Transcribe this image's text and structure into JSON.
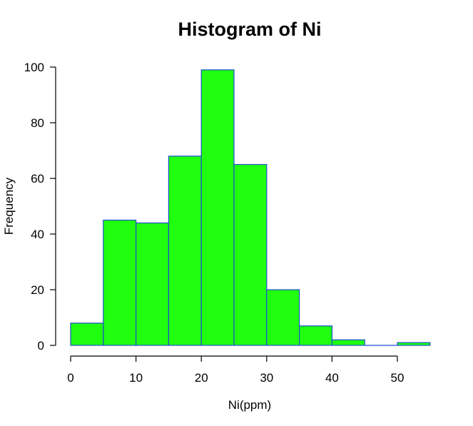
{
  "chart_data": {
    "type": "bar",
    "title": "Histogram of Ni",
    "xlabel": "Ni(ppm)",
    "ylabel": "Frequency",
    "bins": [
      {
        "from": 0,
        "to": 5,
        "count": 8
      },
      {
        "from": 5,
        "to": 10,
        "count": 45
      },
      {
        "from": 10,
        "to": 15,
        "count": 44
      },
      {
        "from": 15,
        "to": 20,
        "count": 68
      },
      {
        "from": 20,
        "to": 25,
        "count": 99
      },
      {
        "from": 25,
        "to": 30,
        "count": 65
      },
      {
        "from": 30,
        "to": 35,
        "count": 20
      },
      {
        "from": 35,
        "to": 40,
        "count": 7
      },
      {
        "from": 40,
        "to": 45,
        "count": 2
      },
      {
        "from": 45,
        "to": 50,
        "count": 0
      },
      {
        "from": 50,
        "to": 55,
        "count": 1
      }
    ],
    "xticks": [
      0,
      10,
      20,
      30,
      40,
      50
    ],
    "yticks": [
      0,
      20,
      40,
      60,
      80,
      100
    ],
    "xlim": [
      0,
      55
    ],
    "ylim": [
      0,
      100
    ],
    "grid": false,
    "colors": {
      "fill": "#1fff0f",
      "border": "#1f4fd1"
    }
  }
}
